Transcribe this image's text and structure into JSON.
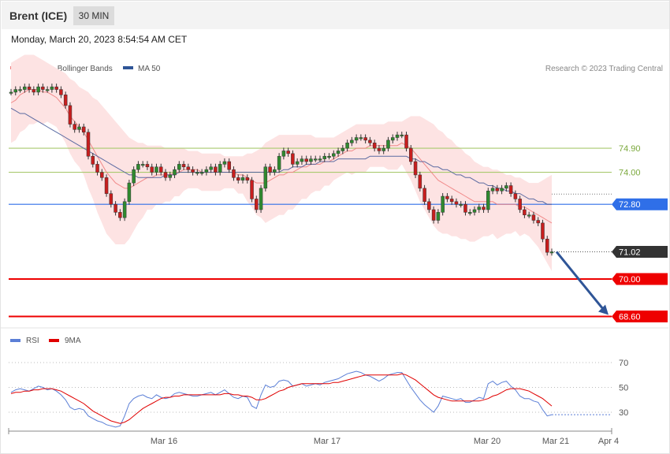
{
  "header": {
    "instrument": "Brent (ICE)",
    "timeframe": "30 MIN"
  },
  "timestamp": "Monday, March 20, 2023 8:54:54 AM CET",
  "legend": {
    "bollinger": {
      "label": "MA 20 + Bollinger Bands",
      "color": "#f08080"
    },
    "ma50": {
      "label": "MA 50",
      "color": "#2f5597"
    }
  },
  "copyright": "Research © 2023 Trading Central",
  "rsi_legend": {
    "rsi": {
      "label": "RSI",
      "color": "#5b7fd6"
    },
    "ma9": {
      "label": "9MA",
      "color": "#e00000"
    }
  },
  "chart_data": [
    {
      "type": "candlestick",
      "title": "Brent (ICE)",
      "timeframe": "30 MIN",
      "ylim": [
        68.2,
        77.5
      ],
      "x_ticks": [
        "Mar 16",
        "Mar 17",
        "Mar 20",
        "Mar 21",
        "Apr 4"
      ],
      "levels": [
        {
          "value": 74.9,
          "label": "74.90",
          "style": "resistance",
          "color": "#a9c96f"
        },
        {
          "value": 74.0,
          "label": "74.00",
          "style": "resistance",
          "color": "#a9c96f"
        },
        {
          "value": 72.8,
          "label": "72.80",
          "style": "pivot",
          "color": "#2f6fe8"
        },
        {
          "value": 71.02,
          "label": "71.02",
          "style": "last-price",
          "color": "#333333"
        },
        {
          "value": 70.0,
          "label": "70.00",
          "style": "support",
          "color": "#ee0000"
        },
        {
          "value": 68.6,
          "label": "68.60",
          "style": "support",
          "color": "#ee0000"
        }
      ],
      "close": [
        77.0,
        77.1,
        77.1,
        77.2,
        77.1,
        77.0,
        77.2,
        77.1,
        77.1,
        77.2,
        77.1,
        76.9,
        76.5,
        75.8,
        75.6,
        75.7,
        75.5,
        74.6,
        74.3,
        74.0,
        73.8,
        73.2,
        72.8,
        72.5,
        72.3,
        72.9,
        73.6,
        74.1,
        74.3,
        74.3,
        74.2,
        74.0,
        74.2,
        74.0,
        73.8,
        73.9,
        74.1,
        74.3,
        74.2,
        74.1,
        74.0,
        74.0,
        74.0,
        74.1,
        74.2,
        74.0,
        74.3,
        74.4,
        74.1,
        73.8,
        73.7,
        73.8,
        73.7,
        73.0,
        72.6,
        73.4,
        74.2,
        74.0,
        74.1,
        74.6,
        74.8,
        74.7,
        74.3,
        74.4,
        74.5,
        74.4,
        74.5,
        74.5,
        74.5,
        74.6,
        74.6,
        74.7,
        74.8,
        74.9,
        75.1,
        75.2,
        75.3,
        75.3,
        75.2,
        75.1,
        74.9,
        74.8,
        74.9,
        75.2,
        75.3,
        75.4,
        75.4,
        74.9,
        74.4,
        73.9,
        73.4,
        72.9,
        72.6,
        72.2,
        72.5,
        73.1,
        73.0,
        72.9,
        72.8,
        72.8,
        72.5,
        72.5,
        72.6,
        72.7,
        72.6,
        73.3,
        73.4,
        73.3,
        73.4,
        73.5,
        73.2,
        73.0,
        72.6,
        72.4,
        72.4,
        72.2,
        72.1,
        71.5,
        71.0,
        71.02
      ],
      "ma20": [
        76.6,
        76.7,
        76.9,
        77.0,
        77.1,
        77.1,
        77.1,
        77.0,
        77.0,
        76.9,
        76.8,
        76.6,
        76.4,
        76.1,
        75.9,
        75.7,
        75.5,
        75.2,
        74.9,
        74.6,
        74.3,
        74.0,
        73.8,
        73.6,
        73.5,
        73.4,
        73.4,
        73.5,
        73.6,
        73.7,
        73.8,
        73.8,
        73.9,
        73.9,
        73.9,
        73.9,
        74.0,
        74.0,
        74.1,
        74.1,
        74.1,
        74.1,
        74.0,
        74.0,
        74.0,
        74.0,
        74.0,
        74.0,
        74.0,
        74.0,
        73.9,
        73.9,
        73.8,
        73.7,
        73.6,
        73.6,
        73.6,
        73.7,
        73.8,
        73.9,
        73.9,
        74.0,
        74.0,
        74.1,
        74.2,
        74.2,
        74.3,
        74.3,
        74.3,
        74.4,
        74.4,
        74.5,
        74.6,
        74.7,
        74.8,
        74.8,
        74.9,
        74.9,
        74.9,
        75.0,
        75.0,
        75.0,
        75.0,
        75.0,
        75.0,
        75.0,
        75.1,
        75.0,
        74.9,
        74.7,
        74.5,
        74.3,
        74.1,
        73.9,
        73.7,
        73.6,
        73.5,
        73.4,
        73.3,
        73.2,
        73.1,
        73.0,
        72.9,
        72.9,
        72.9,
        72.9,
        72.9,
        72.8,
        72.8,
        72.8,
        72.8,
        72.8,
        72.7,
        72.7,
        72.6,
        72.5,
        72.4,
        72.3,
        72.2,
        72.1
      ],
      "ma50": [
        76.4,
        76.3,
        76.2,
        76.2,
        76.1,
        76.0,
        75.9,
        75.8,
        75.7,
        75.6,
        75.5,
        75.4,
        75.3,
        75.2,
        75.1,
        75.0,
        74.9,
        74.8,
        74.7,
        74.6,
        74.5,
        74.4,
        74.3,
        74.2,
        74.1,
        74.0,
        73.9,
        73.9,
        73.8,
        73.8,
        73.8,
        73.8,
        73.8,
        73.8,
        73.9,
        73.9,
        73.9,
        74.0,
        74.0,
        74.0,
        74.0,
        74.0,
        74.0,
        74.0,
        74.0,
        74.0,
        74.0,
        74.0,
        74.0,
        74.0,
        74.0,
        74.0,
        74.0,
        74.0,
        74.0,
        74.0,
        74.0,
        74.0,
        74.0,
        74.0,
        74.1,
        74.1,
        74.2,
        74.2,
        74.2,
        74.3,
        74.3,
        74.3,
        74.4,
        74.4,
        74.4,
        74.4,
        74.5,
        74.5,
        74.5,
        74.5,
        74.5,
        74.5,
        74.5,
        74.6,
        74.6,
        74.6,
        74.6,
        74.6,
        74.6,
        74.6,
        74.6,
        74.6,
        74.5,
        74.5,
        74.4,
        74.4,
        74.3,
        74.2,
        74.2,
        74.1,
        74.1,
        74.0,
        73.9,
        73.9,
        73.8,
        73.8,
        73.7,
        73.6,
        73.6,
        73.5,
        73.5,
        73.4,
        73.4,
        73.3,
        73.3,
        73.2,
        73.2,
        73.1,
        73.0,
        73.0,
        72.9,
        72.9,
        72.8,
        72.8
      ],
      "bb_upper": [
        78.1,
        78.2,
        78.3,
        78.4,
        78.4,
        78.4,
        78.3,
        78.2,
        78.1,
        78.0,
        77.9,
        77.8,
        77.7,
        77.5,
        77.4,
        77.2,
        77.1,
        77.0,
        76.8,
        76.7,
        76.5,
        76.3,
        76.1,
        75.9,
        75.7,
        75.5,
        75.3,
        75.2,
        75.1,
        75.1,
        75.0,
        75.0,
        75.0,
        75.0,
        74.9,
        74.9,
        74.9,
        74.9,
        74.9,
        74.8,
        74.8,
        74.8,
        74.7,
        74.7,
        74.7,
        74.7,
        74.7,
        74.6,
        74.6,
        74.6,
        74.6,
        74.6,
        74.7,
        74.7,
        74.8,
        74.9,
        75.1,
        75.2,
        75.3,
        75.4,
        75.4,
        75.4,
        75.4,
        75.4,
        75.4,
        75.4,
        75.4,
        75.3,
        75.3,
        75.3,
        75.3,
        75.3,
        75.4,
        75.5,
        75.6,
        75.7,
        75.8,
        75.8,
        75.8,
        75.8,
        75.8,
        75.8,
        75.8,
        75.9,
        75.9,
        75.9,
        75.9,
        76.0,
        76.1,
        76.1,
        76.1,
        76.0,
        75.9,
        75.8,
        75.6,
        75.5,
        75.3,
        75.2,
        75.0,
        74.9,
        74.7,
        74.6,
        74.4,
        74.3,
        74.2,
        74.2,
        74.1,
        74.1,
        74.0,
        73.9,
        73.9,
        73.8,
        73.8,
        73.7,
        73.6,
        73.6,
        73.6,
        73.7,
        73.8,
        73.9
      ],
      "bb_lower": [
        75.1,
        75.2,
        75.5,
        75.6,
        75.8,
        75.8,
        75.9,
        75.8,
        75.9,
        75.8,
        75.7,
        75.4,
        75.1,
        74.7,
        74.4,
        74.2,
        73.9,
        73.4,
        73.0,
        72.5,
        72.1,
        71.7,
        71.5,
        71.3,
        71.3,
        71.3,
        71.5,
        71.8,
        72.1,
        72.3,
        72.6,
        72.6,
        72.8,
        72.8,
        72.9,
        72.9,
        73.1,
        73.1,
        73.3,
        73.4,
        73.4,
        73.4,
        73.3,
        73.3,
        73.3,
        73.3,
        73.3,
        73.4,
        73.4,
        73.4,
        73.2,
        73.2,
        72.9,
        72.7,
        72.4,
        72.3,
        72.1,
        72.2,
        72.3,
        72.4,
        72.4,
        72.6,
        72.6,
        72.8,
        73.0,
        73.0,
        73.2,
        73.3,
        73.3,
        73.5,
        73.5,
        73.7,
        73.8,
        73.9,
        74.0,
        73.9,
        74.0,
        74.0,
        74.0,
        74.2,
        74.2,
        74.2,
        74.2,
        74.1,
        74.1,
        74.1,
        74.3,
        74.0,
        73.7,
        73.3,
        72.9,
        72.6,
        72.3,
        72.0,
        71.8,
        71.7,
        71.7,
        71.6,
        71.6,
        71.5,
        71.5,
        71.4,
        71.4,
        71.5,
        71.6,
        71.6,
        71.7,
        71.5,
        71.6,
        71.7,
        71.7,
        71.8,
        71.6,
        71.7,
        71.6,
        71.4,
        71.2,
        70.9,
        70.6,
        70.3
      ],
      "projection": {
        "from": 71.02,
        "to": 68.6,
        "direction": "down"
      }
    },
    {
      "type": "line",
      "title": "RSI",
      "ylim": [
        10,
        90
      ],
      "y_ticks": [
        30,
        50,
        70
      ],
      "series": [
        {
          "name": "RSI",
          "values": [
            46,
            48,
            49,
            48,
            47,
            49,
            51,
            50,
            48,
            49,
            47,
            44,
            40,
            34,
            32,
            33,
            32,
            27,
            25,
            23,
            22,
            20,
            19,
            18,
            19,
            27,
            37,
            41,
            43,
            44,
            42,
            41,
            44,
            42,
            41,
            42,
            45,
            46,
            45,
            44,
            43,
            43,
            44,
            45,
            46,
            44,
            46,
            48,
            45,
            42,
            41,
            43,
            42,
            35,
            33,
            44,
            52,
            50,
            51,
            55,
            56,
            55,
            51,
            52,
            53,
            51,
            52,
            53,
            52,
            54,
            55,
            56,
            57,
            59,
            61,
            62,
            63,
            62,
            60,
            59,
            57,
            55,
            57,
            60,
            61,
            62,
            62,
            56,
            50,
            45,
            40,
            36,
            33,
            30,
            35,
            43,
            42,
            41,
            40,
            41,
            38,
            38,
            40,
            42,
            41,
            53,
            55,
            52,
            54,
            55,
            51,
            48,
            43,
            41,
            41,
            39,
            38,
            32,
            27,
            28
          ]
        },
        {
          "name": "9MA",
          "values": [
            45,
            46,
            46,
            47,
            47,
            48,
            48,
            49,
            49,
            49,
            48,
            47,
            45,
            43,
            41,
            39,
            37,
            34,
            31,
            29,
            27,
            25,
            23,
            22,
            21,
            22,
            24,
            27,
            30,
            33,
            35,
            37,
            39,
            41,
            42,
            42,
            43,
            43,
            44,
            44,
            44,
            44,
            44,
            44,
            44,
            44,
            44,
            45,
            45,
            44,
            44,
            43,
            43,
            42,
            40,
            40,
            41,
            43,
            45,
            47,
            48,
            50,
            51,
            52,
            53,
            53,
            53,
            53,
            53,
            53,
            53,
            54,
            54,
            55,
            56,
            57,
            58,
            59,
            60,
            60,
            60,
            60,
            60,
            60,
            60,
            60,
            61,
            60,
            58,
            56,
            53,
            50,
            47,
            44,
            42,
            41,
            40,
            39,
            39,
            39,
            39,
            39,
            39,
            39,
            40,
            41,
            43,
            44,
            46,
            48,
            49,
            49,
            49,
            48,
            47,
            45,
            43,
            41,
            38,
            35
          ]
        }
      ]
    }
  ]
}
